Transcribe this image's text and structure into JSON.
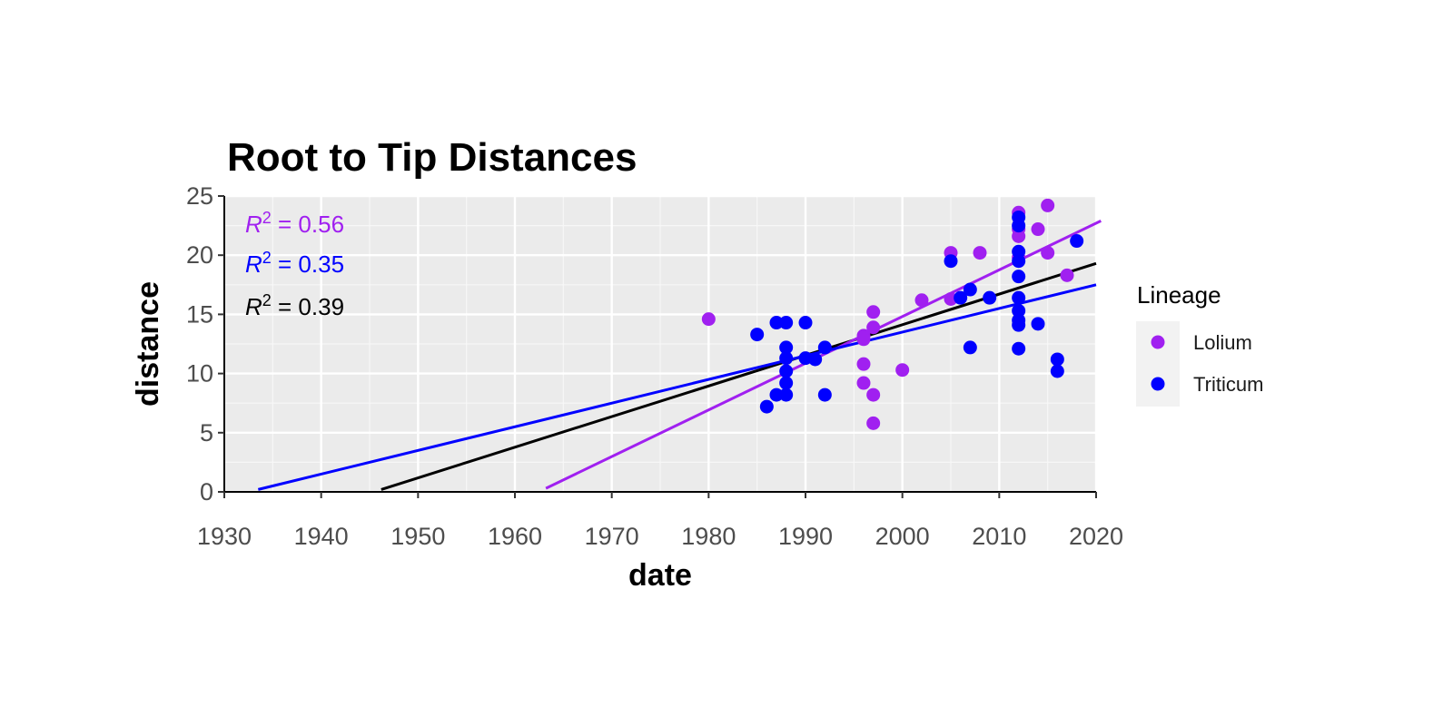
{
  "chart_data": {
    "type": "scatter",
    "title": "Root to Tip Distances",
    "xlabel": "date",
    "ylabel": "distance",
    "xlim": [
      1930,
      2020
    ],
    "ylim": [
      0,
      25
    ],
    "x_ticks": [
      "1930",
      "1940",
      "1950",
      "1960",
      "1970",
      "1980",
      "1990",
      "2000",
      "2010",
      "2020"
    ],
    "y_ticks": [
      "0",
      "5",
      "10",
      "15",
      "20",
      "25"
    ],
    "grid": true,
    "legend": {
      "title": "Lineage",
      "placement": "right"
    },
    "series": [
      {
        "name": "Lolium",
        "color": "#a020f0",
        "points": [
          [
            1980,
            14.6
          ],
          [
            1996,
            13.2
          ],
          [
            1996,
            12.9
          ],
          [
            1996,
            10.8
          ],
          [
            1996,
            9.2
          ],
          [
            1997,
            15.2
          ],
          [
            1997,
            13.9
          ],
          [
            1997,
            8.2
          ],
          [
            1997,
            5.8
          ],
          [
            2000,
            10.3
          ],
          [
            2002,
            16.2
          ],
          [
            2005,
            20.2
          ],
          [
            2005,
            16.3
          ],
          [
            2008,
            20.2
          ],
          [
            2012,
            23.6
          ],
          [
            2012,
            22.2
          ],
          [
            2012,
            21.6
          ],
          [
            2012,
            19.8
          ],
          [
            2014,
            22.2
          ],
          [
            2015,
            24.2
          ],
          [
            2015,
            20.2
          ],
          [
            2017,
            18.3
          ]
        ],
        "fit_line": [
          [
            1963.2,
            0.3
          ],
          [
            2020.5,
            22.9
          ]
        ]
      },
      {
        "name": "Triticum",
        "color": "#0000ff",
        "points": [
          [
            1985,
            13.3
          ],
          [
            1986,
            7.2
          ],
          [
            1987,
            14.3
          ],
          [
            1987,
            8.2
          ],
          [
            1988,
            14.3
          ],
          [
            1988,
            12.2
          ],
          [
            1988,
            11.3
          ],
          [
            1988,
            10.2
          ],
          [
            1988,
            9.2
          ],
          [
            1988,
            8.2
          ],
          [
            1990,
            14.3
          ],
          [
            1990,
            11.3
          ],
          [
            1991,
            11.2
          ],
          [
            1992,
            12.2
          ],
          [
            1992,
            8.2
          ],
          [
            2005,
            19.5
          ],
          [
            2006,
            16.4
          ],
          [
            2007,
            17.1
          ],
          [
            2007,
            12.2
          ],
          [
            2009,
            16.4
          ],
          [
            2012,
            23.2
          ],
          [
            2012,
            22.5
          ],
          [
            2012,
            20.3
          ],
          [
            2012,
            19.5
          ],
          [
            2012,
            18.2
          ],
          [
            2012,
            16.4
          ],
          [
            2012,
            15.3
          ],
          [
            2012,
            14.5
          ],
          [
            2012,
            14.1
          ],
          [
            2012,
            12.1
          ],
          [
            2014,
            14.2
          ],
          [
            2016,
            11.2
          ],
          [
            2016,
            10.2
          ],
          [
            2018,
            21.2
          ]
        ],
        "fit_line": [
          [
            1933.5,
            0.2
          ],
          [
            2020.0,
            17.5
          ]
        ]
      }
    ],
    "overall_fit": {
      "color": "#000000",
      "fit_line": [
        [
          1946.2,
          0.2
        ],
        [
          2020.0,
          19.3
        ]
      ]
    },
    "annotations": [
      {
        "prefix": "R",
        "superscript": "2",
        "text": " = 0.56",
        "color": "#a020f0"
      },
      {
        "prefix": "R",
        "superscript": "2",
        "text": " = 0.35",
        "color": "#0000ff"
      },
      {
        "prefix": "R",
        "superscript": "2",
        "text": " = 0.39",
        "color": "#000000"
      }
    ]
  }
}
